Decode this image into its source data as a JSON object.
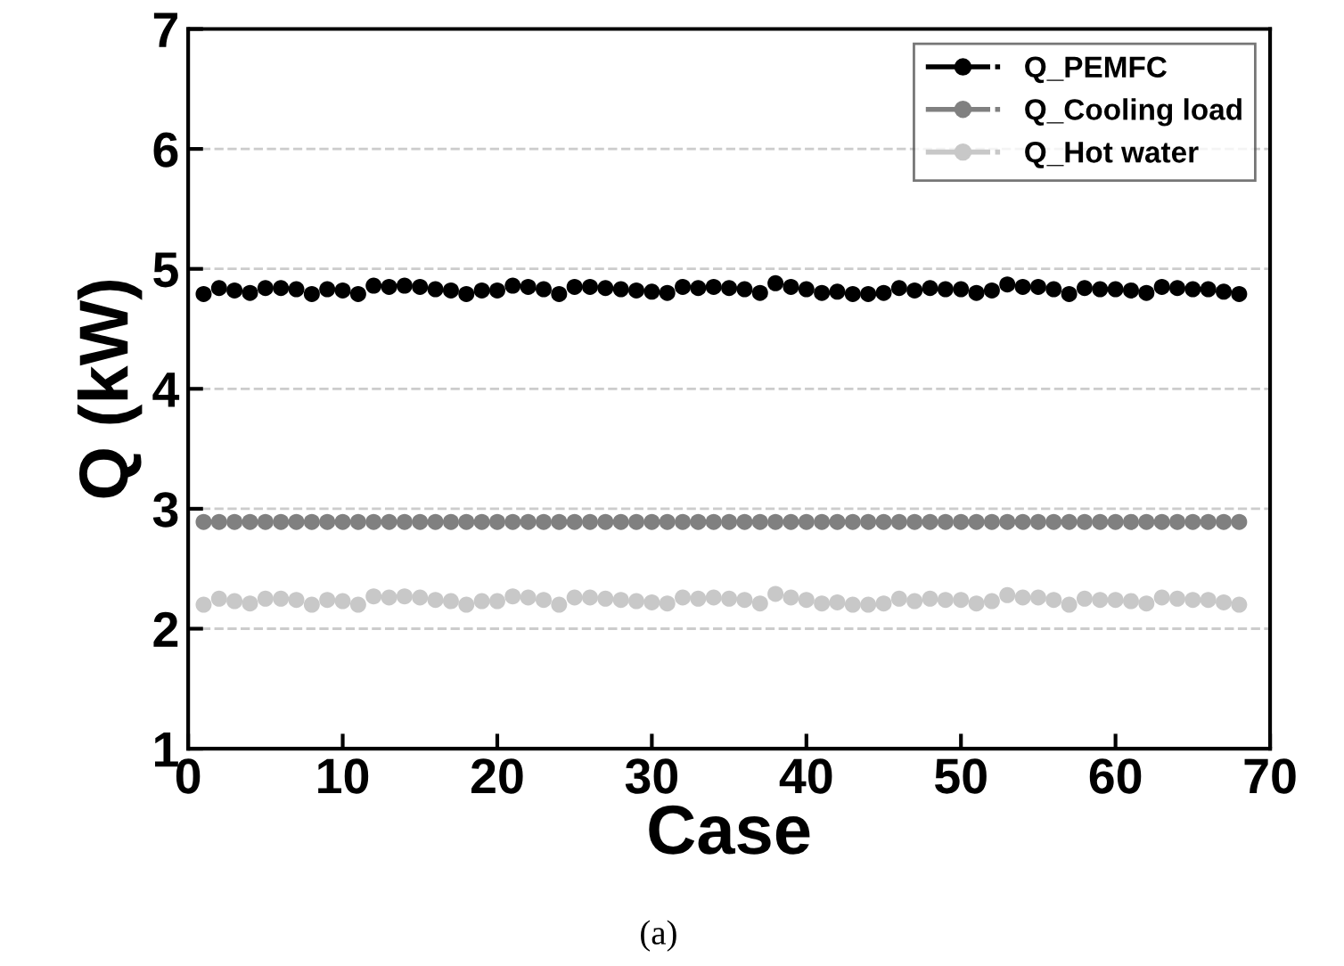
{
  "chart_data": {
    "type": "scatter",
    "xlabel": "Case",
    "ylabel": "Q (kW)",
    "annotations": [
      "(a)"
    ],
    "x": [
      1,
      2,
      3,
      4,
      5,
      6,
      7,
      8,
      9,
      10,
      11,
      12,
      13,
      14,
      15,
      16,
      17,
      18,
      19,
      20,
      21,
      22,
      23,
      24,
      25,
      26,
      27,
      28,
      29,
      30,
      31,
      32,
      33,
      34,
      35,
      36,
      37,
      38,
      39,
      40,
      41,
      42,
      43,
      44,
      45,
      46,
      47,
      48,
      49,
      50,
      51,
      52,
      53,
      54,
      55,
      56,
      57,
      58,
      59,
      60,
      61,
      62,
      63,
      64,
      65,
      66,
      67,
      68
    ],
    "series": [
      {
        "name": "Q_PEMFC",
        "color": "#000000",
        "values": [
          4.79,
          4.84,
          4.82,
          4.8,
          4.84,
          4.84,
          4.83,
          4.79,
          4.83,
          4.82,
          4.79,
          4.86,
          4.85,
          4.86,
          4.85,
          4.83,
          4.82,
          4.79,
          4.82,
          4.82,
          4.86,
          4.85,
          4.83,
          4.79,
          4.85,
          4.85,
          4.84,
          4.83,
          4.82,
          4.81,
          4.8,
          4.85,
          4.84,
          4.85,
          4.84,
          4.83,
          4.8,
          4.88,
          4.85,
          4.83,
          4.8,
          4.81,
          4.79,
          4.79,
          4.8,
          4.84,
          4.82,
          4.84,
          4.83,
          4.83,
          4.8,
          4.82,
          4.87,
          4.85,
          4.85,
          4.83,
          4.79,
          4.84,
          4.83,
          4.83,
          4.82,
          4.8,
          4.85,
          4.84,
          4.83,
          4.83,
          4.81,
          4.79
        ]
      },
      {
        "name": "Q_Cooling load",
        "color": "#808080",
        "values": [
          2.89,
          2.89,
          2.89,
          2.89,
          2.89,
          2.89,
          2.89,
          2.89,
          2.89,
          2.89,
          2.89,
          2.89,
          2.89,
          2.89,
          2.89,
          2.89,
          2.89,
          2.89,
          2.89,
          2.89,
          2.89,
          2.89,
          2.89,
          2.89,
          2.89,
          2.89,
          2.89,
          2.89,
          2.89,
          2.89,
          2.89,
          2.89,
          2.89,
          2.89,
          2.89,
          2.89,
          2.89,
          2.89,
          2.89,
          2.89,
          2.89,
          2.89,
          2.89,
          2.89,
          2.89,
          2.89,
          2.89,
          2.89,
          2.89,
          2.89,
          2.89,
          2.89,
          2.89,
          2.89,
          2.89,
          2.89,
          2.89,
          2.89,
          2.89,
          2.89,
          2.89,
          2.89,
          2.89,
          2.89,
          2.89,
          2.89,
          2.89,
          2.89
        ]
      },
      {
        "name": "Q_Hot water",
        "color": "#c8c8c8",
        "values": [
          2.2,
          2.25,
          2.23,
          2.21,
          2.25,
          2.25,
          2.24,
          2.2,
          2.24,
          2.23,
          2.2,
          2.27,
          2.26,
          2.27,
          2.26,
          2.24,
          2.23,
          2.2,
          2.23,
          2.23,
          2.27,
          2.26,
          2.24,
          2.2,
          2.26,
          2.26,
          2.25,
          2.24,
          2.23,
          2.22,
          2.21,
          2.26,
          2.25,
          2.26,
          2.25,
          2.24,
          2.21,
          2.29,
          2.26,
          2.24,
          2.21,
          2.22,
          2.2,
          2.2,
          2.21,
          2.25,
          2.23,
          2.25,
          2.24,
          2.24,
          2.21,
          2.23,
          2.28,
          2.26,
          2.26,
          2.24,
          2.2,
          2.25,
          2.24,
          2.24,
          2.23,
          2.21,
          2.26,
          2.25,
          2.24,
          2.24,
          2.22,
          2.2
        ]
      }
    ],
    "xlim": [
      0,
      70
    ],
    "xticks": [
      0,
      10,
      20,
      30,
      40,
      50,
      60,
      70
    ],
    "ylim": [
      1,
      7
    ],
    "yticks": [
      1,
      2,
      3,
      4,
      5,
      6,
      7
    ],
    "grid": "y",
    "legend": "top right",
    "marker": "circle"
  }
}
